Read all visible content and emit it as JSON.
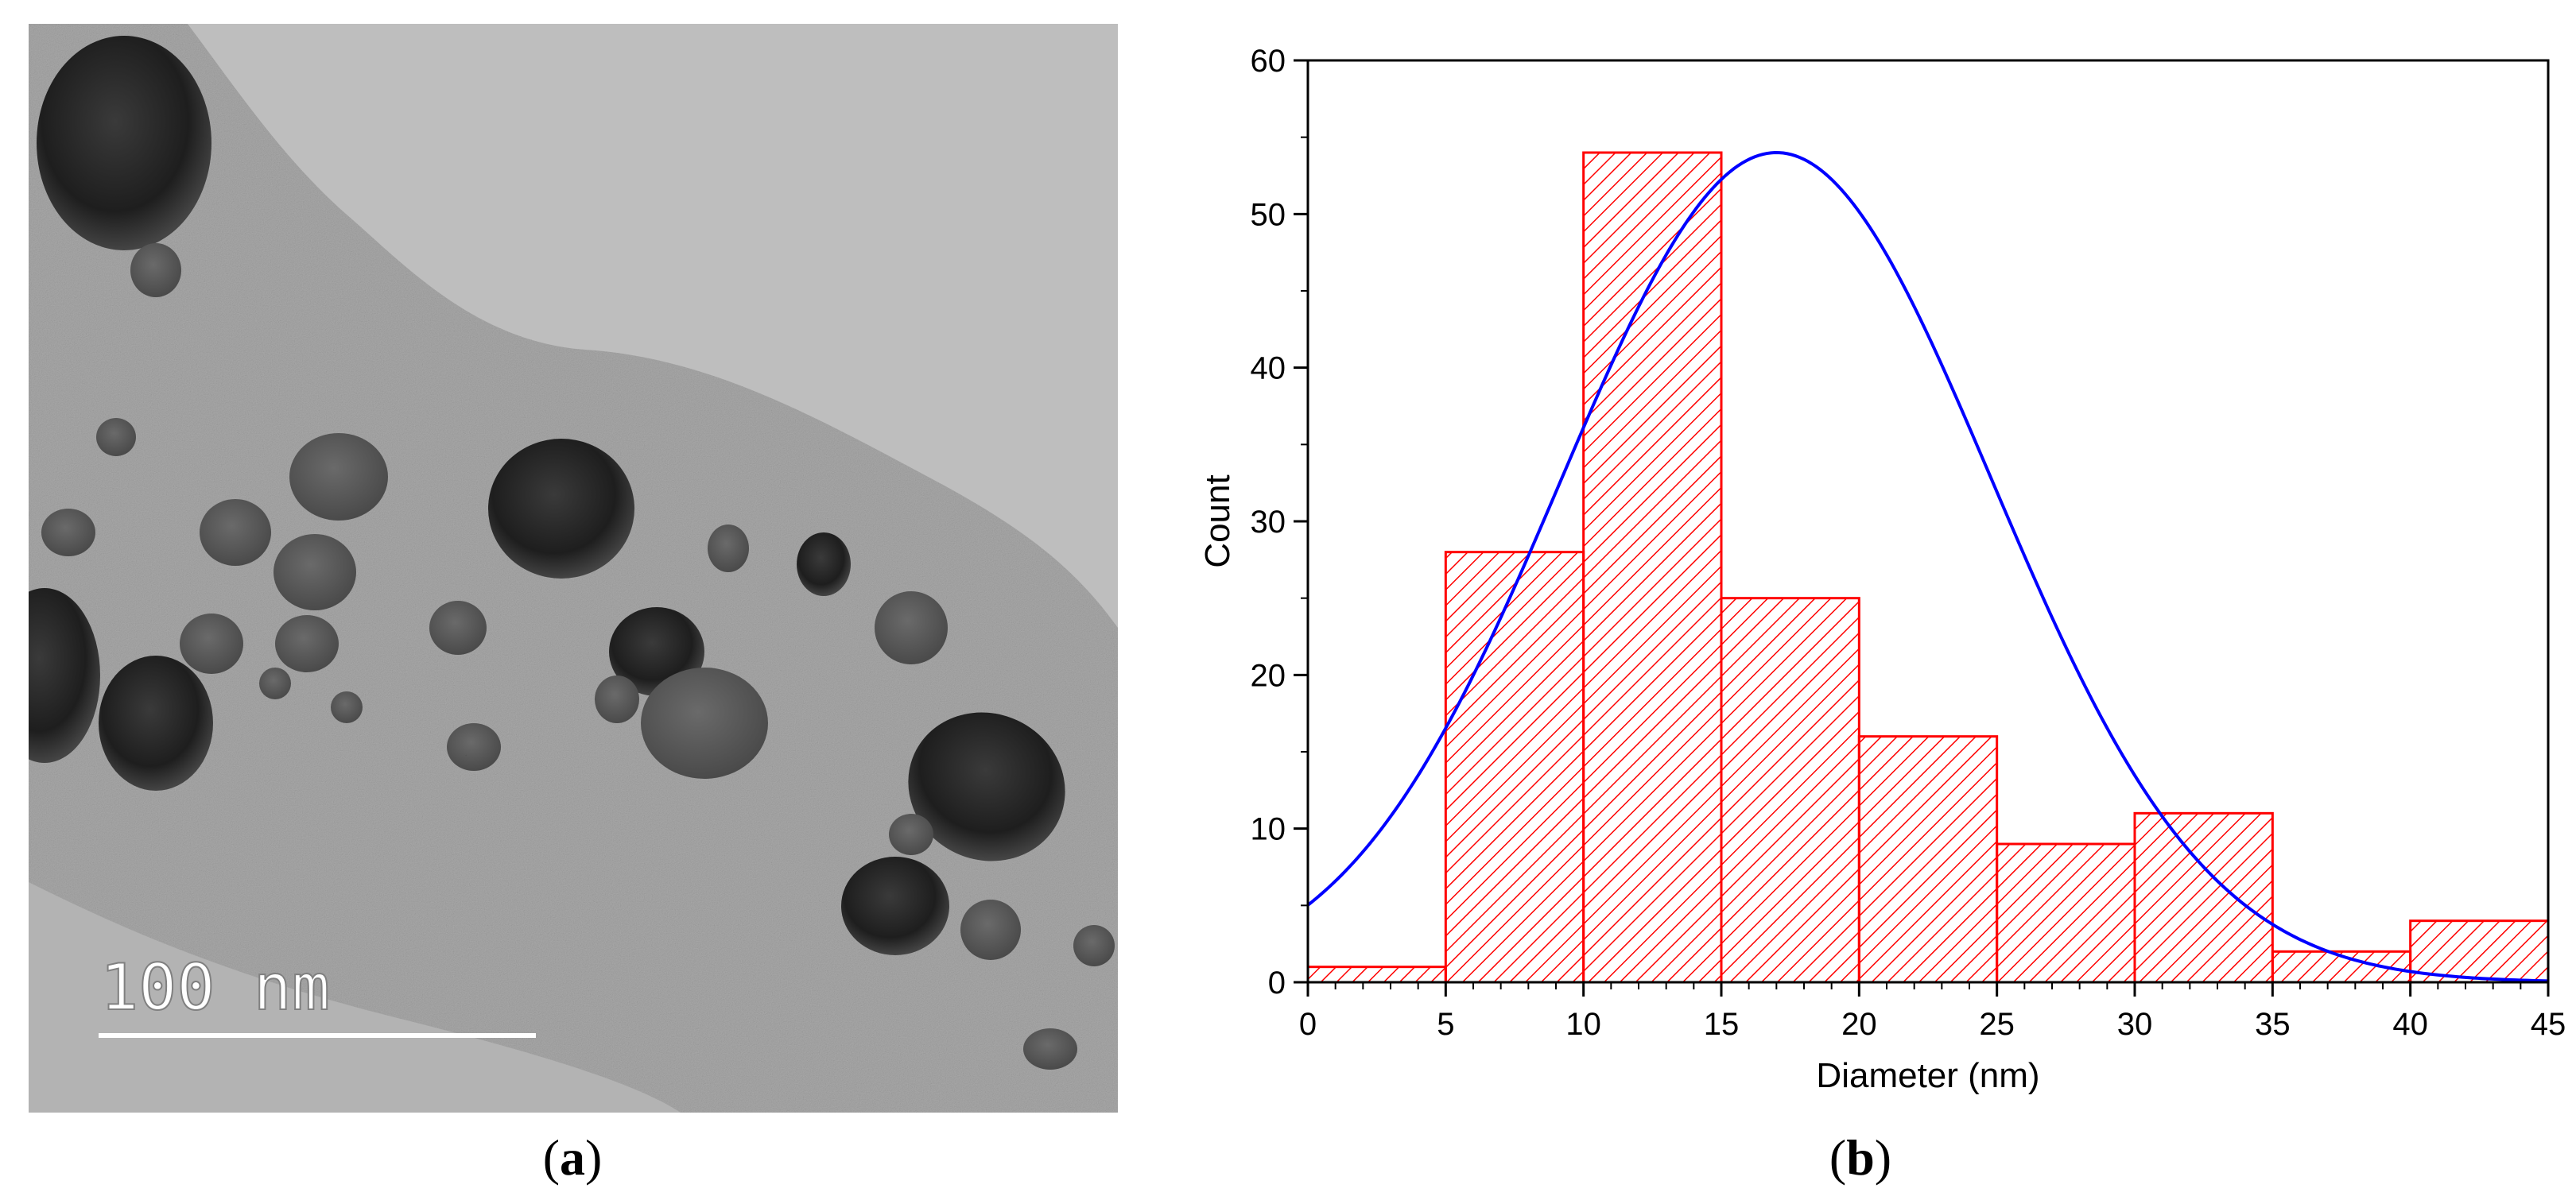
{
  "panels": {
    "a": {
      "label_prefix": "(",
      "label_letter": "a",
      "label_suffix": ")"
    },
    "b": {
      "label_prefix": "(",
      "label_letter": "b",
      "label_suffix": ")"
    }
  },
  "tem": {
    "scale_bar_label": "100 nm"
  },
  "colors": {
    "bar": "#ff0000",
    "fit_curve": "#0000ff",
    "axis": "#000000"
  },
  "chart_data": {
    "type": "bar",
    "subtype": "histogram",
    "title": "",
    "xlabel": "Diameter (nm)",
    "ylabel": "Count",
    "xlim": [
      0,
      45
    ],
    "ylim": [
      0,
      60
    ],
    "x_ticks": [
      0,
      5,
      10,
      15,
      20,
      25,
      30,
      35,
      40,
      45
    ],
    "y_ticks": [
      0,
      10,
      20,
      30,
      40,
      50,
      60
    ],
    "bin_width": 5,
    "bins": [
      {
        "start": 0,
        "end": 5,
        "count": 1
      },
      {
        "start": 5,
        "end": 10,
        "count": 28
      },
      {
        "start": 10,
        "end": 15,
        "count": 54
      },
      {
        "start": 15,
        "end": 20,
        "count": 25
      },
      {
        "start": 20,
        "end": 25,
        "count": 16
      },
      {
        "start": 25,
        "end": 30,
        "count": 9
      },
      {
        "start": 30,
        "end": 35,
        "count": 11
      },
      {
        "start": 35,
        "end": 40,
        "count": 2
      },
      {
        "start": 40,
        "end": 45,
        "count": 4
      }
    ],
    "bar_fill": "hatched",
    "fit": {
      "type": "gaussian",
      "peak_x": 17,
      "peak_y": 54,
      "sigma": 7.8
    },
    "grid": false,
    "legend": "none"
  }
}
